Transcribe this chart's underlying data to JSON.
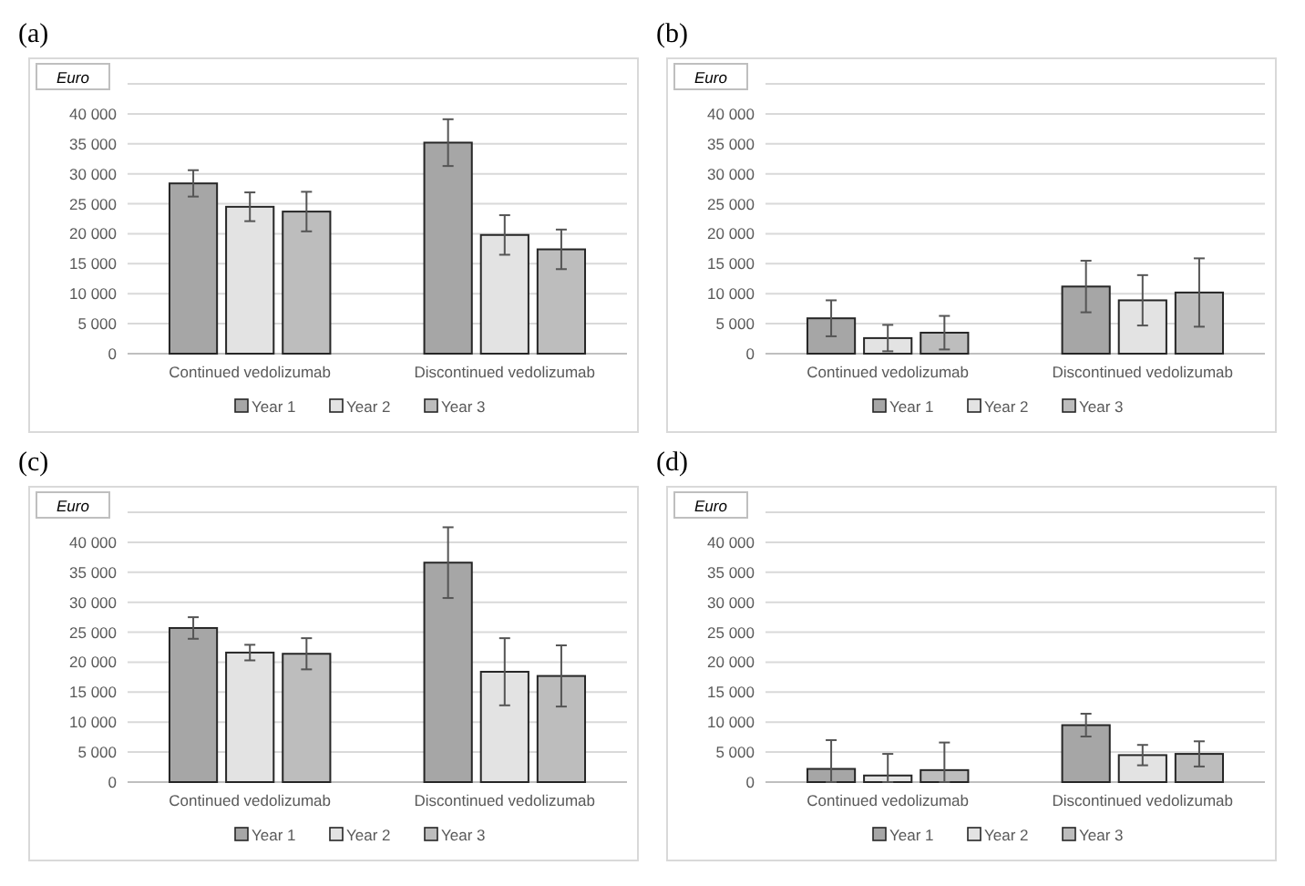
{
  "chart_data": [
    {
      "type": "bar",
      "title": "(a)",
      "ylabel": "Euro",
      "categories": [
        "Continued vedolizumab",
        "Discontinued vedolizumab"
      ],
      "ylim": [
        0,
        45000
      ],
      "yticks": [
        {
          "value": 0,
          "label": "0"
        },
        {
          "value": 5000,
          "label": "5 000"
        },
        {
          "value": 10000,
          "label": "10 000"
        },
        {
          "value": 15000,
          "label": "15 000"
        },
        {
          "value": 20000,
          "label": "20 000"
        },
        {
          "value": 25000,
          "label": "25 000"
        },
        {
          "value": 30000,
          "label": "30 000"
        },
        {
          "value": 35000,
          "label": "35 000"
        },
        {
          "value": 40000,
          "label": "40 000"
        },
        {
          "value": 45000,
          "label": null
        }
      ],
      "grid": "y",
      "legend": "bottom",
      "series": [
        {
          "name": "Year 1",
          "color": "#a6a6a6",
          "values": [
            28400,
            35200
          ],
          "errors": [
            2200,
            3900
          ]
        },
        {
          "name": "Year 2",
          "color": "#e3e3e3",
          "values": [
            24500,
            19800
          ],
          "errors": [
            2400,
            3300
          ]
        },
        {
          "name": "Year 3",
          "color": "#bdbdbd",
          "values": [
            23700,
            17400
          ],
          "errors": [
            3300,
            3300
          ]
        }
      ]
    },
    {
      "type": "bar",
      "title": "(b)",
      "ylabel": "Euro",
      "categories": [
        "Continued vedolizumab",
        "Discontinued vedolizumab"
      ],
      "ylim": [
        0,
        45000
      ],
      "yticks": [
        {
          "value": 0,
          "label": "0"
        },
        {
          "value": 5000,
          "label": "5 000"
        },
        {
          "value": 10000,
          "label": "10 000"
        },
        {
          "value": 15000,
          "label": "15 000"
        },
        {
          "value": 20000,
          "label": "20 000"
        },
        {
          "value": 25000,
          "label": "25 000"
        },
        {
          "value": 30000,
          "label": "30 000"
        },
        {
          "value": 35000,
          "label": "35 000"
        },
        {
          "value": 40000,
          "label": "40 000"
        },
        {
          "value": 45000,
          "label": null
        }
      ],
      "grid": "y",
      "legend": "bottom",
      "series": [
        {
          "name": "Year 1",
          "color": "#a6a6a6",
          "values": [
            5900,
            11200
          ],
          "errors": [
            3000,
            4300
          ]
        },
        {
          "name": "Year 2",
          "color": "#e3e3e3",
          "values": [
            2600,
            8900
          ],
          "errors": [
            2200,
            4200
          ]
        },
        {
          "name": "Year 3",
          "color": "#bdbdbd",
          "values": [
            3500,
            10200
          ],
          "errors": [
            2800,
            5700
          ]
        }
      ]
    },
    {
      "type": "bar",
      "title": "(c)",
      "ylabel": "Euro",
      "categories": [
        "Continued vedolizumab",
        "Discontinued vedolizumab"
      ],
      "ylim": [
        0,
        45000
      ],
      "yticks": [
        {
          "value": 0,
          "label": "0"
        },
        {
          "value": 5000,
          "label": "5 000"
        },
        {
          "value": 10000,
          "label": "10 000"
        },
        {
          "value": 15000,
          "label": "15 000"
        },
        {
          "value": 20000,
          "label": "20 000"
        },
        {
          "value": 25000,
          "label": "25 000"
        },
        {
          "value": 30000,
          "label": "30 000"
        },
        {
          "value": 35000,
          "label": "35 000"
        },
        {
          "value": 40000,
          "label": "40 000"
        },
        {
          "value": 45000,
          "label": null
        }
      ],
      "grid": "y",
      "legend": "bottom",
      "series": [
        {
          "name": "Year 1",
          "color": "#a6a6a6",
          "values": [
            25700,
            36600
          ],
          "errors": [
            1800,
            5900
          ]
        },
        {
          "name": "Year 2",
          "color": "#e3e3e3",
          "values": [
            21600,
            18400
          ],
          "errors": [
            1300,
            5600
          ]
        },
        {
          "name": "Year 3",
          "color": "#bdbdbd",
          "values": [
            21400,
            17700
          ],
          "errors": [
            2600,
            5100
          ]
        }
      ]
    },
    {
      "type": "bar",
      "title": "(d)",
      "ylabel": "Euro",
      "categories": [
        "Continued vedolizumab",
        "Discontinued vedolizumab"
      ],
      "ylim": [
        0,
        45000
      ],
      "yticks": [
        {
          "value": 0,
          "label": "0"
        },
        {
          "value": 5000,
          "label": "5 000"
        },
        {
          "value": 10000,
          "label": "10 000"
        },
        {
          "value": 15000,
          "label": "15 000"
        },
        {
          "value": 20000,
          "label": "20 000"
        },
        {
          "value": 25000,
          "label": "25 000"
        },
        {
          "value": 30000,
          "label": "30 000"
        },
        {
          "value": 35000,
          "label": "35 000"
        },
        {
          "value": 40000,
          "label": "40 000"
        },
        {
          "value": 45000,
          "label": null
        }
      ],
      "grid": "y",
      "legend": "bottom",
      "series": [
        {
          "name": "Year 1",
          "color": "#a6a6a6",
          "values": [
            2200,
            9500
          ],
          "errors": [
            [
              0,
              7000
            ],
            1900
          ]
        },
        {
          "name": "Year 2",
          "color": "#e3e3e3",
          "values": [
            1100,
            4500
          ],
          "errors": [
            [
              0,
              4700
            ],
            1700
          ]
        },
        {
          "name": "Year 3",
          "color": "#bdbdbd",
          "values": [
            2000,
            4700
          ],
          "errors": [
            [
              0,
              6600
            ],
            2100
          ]
        }
      ]
    }
  ]
}
